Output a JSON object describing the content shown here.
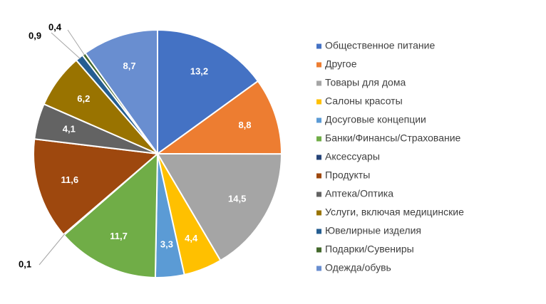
{
  "chart_data": {
    "type": "pie",
    "title": "",
    "legend_position": "right",
    "slices": [
      {
        "name": "Общественное питание",
        "value": 13.2,
        "label": "13,2",
        "color": "#4472C4"
      },
      {
        "name": "Другое",
        "value": 8.8,
        "label": "8,8",
        "color": "#ED7D31"
      },
      {
        "name": "Товары для дома",
        "value": 14.5,
        "label": "14,5",
        "color": "#A5A5A5"
      },
      {
        "name": "Салоны красоты",
        "value": 4.4,
        "label": "4,4",
        "color": "#FFC000"
      },
      {
        "name": "Досуговые концепции",
        "value": 3.3,
        "label": "3,3",
        "color": "#5B9BD5"
      },
      {
        "name": "Банки/Финансы/Страхование",
        "value": 11.7,
        "label": "11,7",
        "color": "#70AD47"
      },
      {
        "name": "Аксессуары",
        "value": 0.1,
        "label": "0,1",
        "color": "#264478"
      },
      {
        "name": "Продукты",
        "value": 11.6,
        "label": "11,6",
        "color": "#9E480E"
      },
      {
        "name": "Аптека/Оптика",
        "value": 4.1,
        "label": "4,1",
        "color": "#636363"
      },
      {
        "name": "Услуги,  включая медицинские",
        "value": 6.2,
        "label": "6,2",
        "color": "#997300"
      },
      {
        "name": "Ювелирные изделия",
        "value": 0.9,
        "label": "0,9",
        "color": "#255E91"
      },
      {
        "name": "Подарки/Сувениры",
        "value": 0.4,
        "label": "0,4",
        "color": "#43682B"
      },
      {
        "name": "Одежда/обувь",
        "value": 8.7,
        "label": "8,7",
        "color": "#698ED0"
      }
    ]
  }
}
